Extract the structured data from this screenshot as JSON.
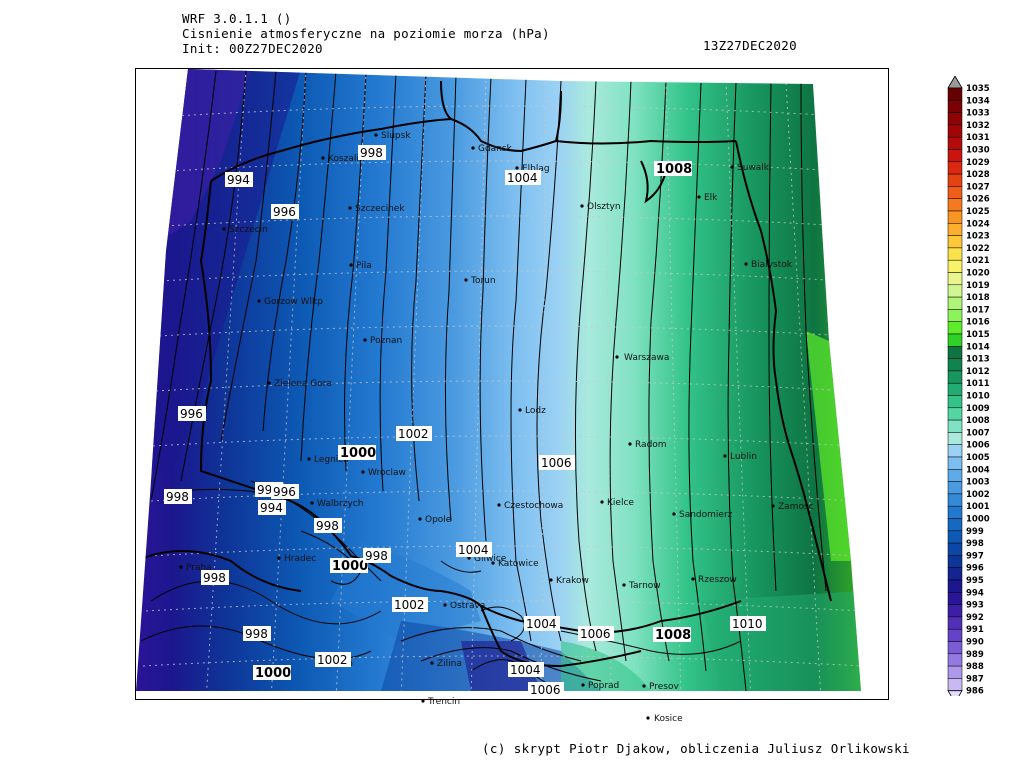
{
  "header": {
    "model": "WRF 3.0.1.1 ()",
    "field": "Cisnienie atmosferyczne na poziomie morza (hPa)",
    "init": "Init: 00Z27DEC2020",
    "valid": "13Z27DEC2020"
  },
  "credit": "(c) skrypt Piotr Djakow, obliczenia Juliusz Orlikowski",
  "cities": [
    "Slupsk",
    "Gdansk",
    "Elblag",
    "Koszalin",
    "Suwalki",
    "Olsztyn",
    "Elk",
    "Szczecinek",
    "Szczecin",
    "Pila",
    "Bialystok",
    "Torun",
    "Gorzow Wlkp",
    "Poznan",
    "Warszawa",
    "Zielona Gora",
    "Lodz",
    "Radom",
    "Lublin",
    "Legnica",
    "Wroclaw",
    "Walbrzych",
    "Czestochowa",
    "Kielce",
    "Zamosc",
    "Opole",
    "Sandomierz",
    "Praha",
    "Hradec",
    "Gliwice",
    "Katowice",
    "Krakow",
    "Tarnow",
    "Rzeszow",
    "Ostrava",
    "Brno",
    "Zilina",
    "Presov",
    "Trencin",
    "Poprad",
    "Kosice"
  ],
  "isobar_labels": [
    "994",
    "996",
    "998",
    "1004",
    "1008",
    "996",
    "998",
    "1000",
    "1002",
    "1006",
    "998",
    "996",
    "994",
    "998",
    "1000",
    "998",
    "1004",
    "998",
    "1002",
    "1004",
    "1006",
    "1008",
    "1010",
    "998",
    "1002",
    "1000",
    "1004",
    "1006"
  ],
  "colorbar": {
    "levels": [
      "986",
      "987",
      "988",
      "989",
      "990",
      "991",
      "992",
      "993",
      "994",
      "995",
      "996",
      "997",
      "998",
      "999",
      "1000",
      "1001",
      "1002",
      "1003",
      "1004",
      "1005",
      "1006",
      "1007",
      "1008",
      "1009",
      "1010",
      "1011",
      "1012",
      "1013",
      "1014",
      "1015",
      "1016",
      "1017",
      "1018",
      "1019",
      "1020",
      "1021",
      "1022",
      "1023",
      "1024",
      "1025",
      "1026",
      "1027",
      "1028",
      "1029",
      "1030",
      "1031",
      "1032",
      "1033",
      "1034",
      "1035"
    ],
    "colors": [
      "#e4dcf8",
      "#c9b9f2",
      "#ad98ea",
      "#9479e0",
      "#7c5cd6",
      "#6642c9",
      "#5230b8",
      "#3d1fa6",
      "#2a1498",
      "#1c178e",
      "#142490",
      "#0e3598",
      "#0c47a6",
      "#0d5ab4",
      "#1469c2",
      "#2379d0",
      "#358ad8",
      "#4a9ae0",
      "#5fabe8",
      "#7cbef0",
      "#9bd1f4",
      "#a9eadd",
      "#80e2c2",
      "#54d6a3",
      "#33c489",
      "#21ad72",
      "#189660",
      "#11834f",
      "#0e7442",
      "#2fd028",
      "#5eec2a",
      "#8cf45a",
      "#b0f47a",
      "#cff595",
      "#eaf58e",
      "#f8f26a",
      "#fae24a",
      "#fcc838",
      "#fcaf2c",
      "#f99623",
      "#f47a1d",
      "#ee5e18",
      "#e54214",
      "#da2812",
      "#c9150f",
      "#b40a0b",
      "#a00508",
      "#8d0306",
      "#7a0204",
      "#650103"
    ]
  }
}
